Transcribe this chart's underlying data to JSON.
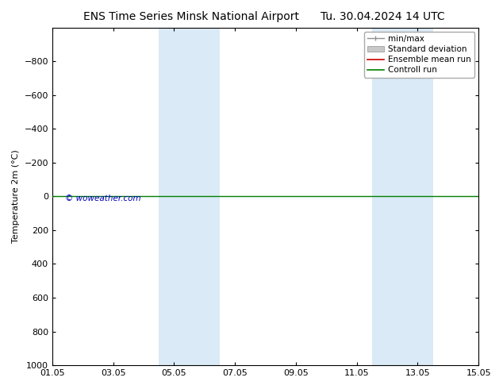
{
  "title_left": "ENS Time Series Minsk National Airport",
  "title_right": "Tu. 30.04.2024 14 UTC",
  "ylabel": "Temperature 2m (°C)",
  "ylim_bottom": -1000,
  "ylim_top": 1000,
  "yticks": [
    -800,
    -600,
    -400,
    -200,
    0,
    200,
    400,
    600,
    800,
    1000
  ],
  "xlim_start": 0,
  "xlim_end": 14,
  "xtick_labels": [
    "01.05",
    "03.05",
    "05.05",
    "07.05",
    "09.05",
    "11.05",
    "13.05",
    "15.05"
  ],
  "xtick_positions": [
    0,
    2,
    4,
    6,
    8,
    10,
    12,
    14
  ],
  "shaded_bands": [
    {
      "xstart": 3.5,
      "xend": 5.5
    },
    {
      "xstart": 10.5,
      "xend": 12.5
    }
  ],
  "band_color": "#daeaf6",
  "control_run_color": "#008000",
  "ensemble_mean_color": "#cc0000",
  "minmax_color": "#909090",
  "std_dev_color": "#c8c8c8",
  "watermark": "© woweather.com",
  "watermark_color": "#0000bb",
  "background_color": "#ffffff",
  "font_size_title": 10,
  "font_size_axis": 8,
  "font_size_legend": 7.5,
  "legend_entries": [
    "min/max",
    "Standard deviation",
    "Ensemble mean run",
    "Controll run"
  ]
}
